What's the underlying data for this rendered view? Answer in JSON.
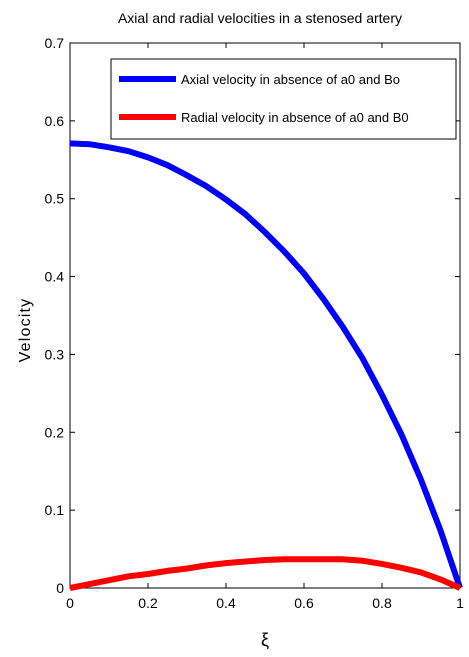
{
  "chart_data": {
    "type": "line",
    "title": "Axial and radial velocities in a stenosed artery",
    "xlabel": "ξ",
    "ylabel": "Velocity",
    "xlim": [
      0,
      1
    ],
    "ylim": [
      0,
      0.7
    ],
    "x_ticks": [
      "0",
      "0.2",
      "0.4",
      "0.6",
      "0.8",
      "1"
    ],
    "y_ticks": [
      "0",
      "0.1",
      "0.2",
      "0.3",
      "0.4",
      "0.5",
      "0.6",
      "0.7"
    ],
    "grid": false,
    "legend_position": "top-right",
    "series": [
      {
        "name": "Axial velocity in absence of a0 and Bo",
        "color": "#0000ff",
        "x": [
          0,
          0.05,
          0.1,
          0.15,
          0.2,
          0.25,
          0.3,
          0.35,
          0.4,
          0.45,
          0.5,
          0.55,
          0.6,
          0.65,
          0.7,
          0.75,
          0.8,
          0.85,
          0.9,
          0.95,
          1.0
        ],
        "y": [
          0.571,
          0.57,
          0.566,
          0.561,
          0.553,
          0.543,
          0.53,
          0.516,
          0.499,
          0.48,
          0.457,
          0.432,
          0.404,
          0.371,
          0.335,
          0.295,
          0.248,
          0.197,
          0.139,
          0.074,
          0.0
        ]
      },
      {
        "name": "Radial velocity in absence of a0 and B0",
        "color": "#ff0000",
        "x": [
          0,
          0.05,
          0.1,
          0.15,
          0.2,
          0.25,
          0.3,
          0.35,
          0.4,
          0.45,
          0.5,
          0.55,
          0.6,
          0.65,
          0.7,
          0.75,
          0.8,
          0.85,
          0.9,
          0.95,
          1.0
        ],
        "y": [
          0.0,
          0.005,
          0.01,
          0.015,
          0.018,
          0.022,
          0.025,
          0.029,
          0.032,
          0.034,
          0.036,
          0.037,
          0.037,
          0.037,
          0.037,
          0.035,
          0.031,
          0.026,
          0.02,
          0.011,
          0.0
        ]
      }
    ]
  }
}
